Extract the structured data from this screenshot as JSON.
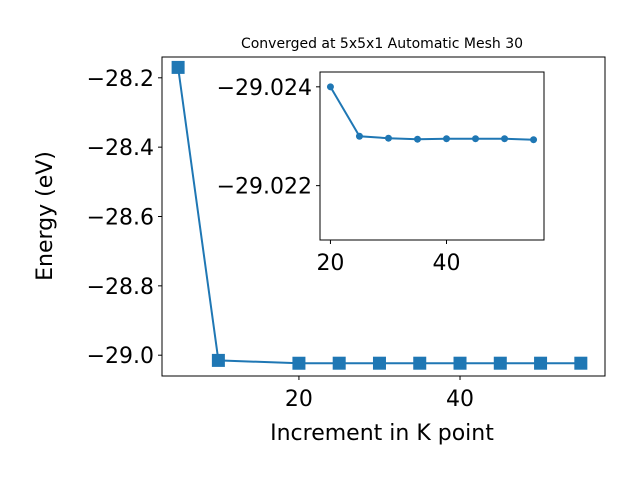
{
  "chart_data": [
    {
      "type": "line",
      "title": "Converged at 5x5x1 Automatic Mesh 30",
      "xlabel": "Increment in K point",
      "ylabel": "Energy (eV)",
      "xlim": [
        3,
        58
      ],
      "ylim": [
        -29.06,
        -28.14
      ],
      "xticks": [
        20,
        40
      ],
      "xtick_labels": [
        "20",
        "40"
      ],
      "yticks": [
        -28.2,
        -28.4,
        -28.6,
        -28.8,
        -29.0
      ],
      "ytick_labels": [
        "−28.2",
        "−28.4",
        "−28.6",
        "−28.8",
        "−29.0"
      ],
      "grid": false,
      "legend": false,
      "color": "#1f77b4",
      "marker": "square",
      "series": [
        {
          "x": [
            5,
            10,
            20,
            25,
            30,
            35,
            40,
            45,
            50,
            55
          ],
          "y": [
            -28.17,
            -29.015,
            -29.0232,
            -29.0231,
            -29.0231,
            -29.0231,
            -29.0231,
            -29.0231,
            -29.0231,
            -29.0231
          ]
        }
      ]
    },
    {
      "type": "line",
      "title": "",
      "xlabel": "",
      "ylabel": "",
      "inset": true,
      "xlim": [
        18.2,
        56.8
      ],
      "ylim": [
        -29.0209,
        -29.0243
      ],
      "xticks": [
        20,
        40
      ],
      "xtick_labels": [
        "20",
        "40"
      ],
      "yticks": [
        -29.024,
        -29.022
      ],
      "ytick_labels": [
        "−29.024",
        "−29.022"
      ],
      "grid": false,
      "legend": false,
      "color": "#1f77b4",
      "marker": "circle",
      "series": [
        {
          "x": [
            20,
            25,
            30,
            35,
            40,
            45,
            50,
            55
          ],
          "y": [
            -29.024,
            -29.023,
            -29.02296,
            -29.02294,
            -29.02295,
            -29.02295,
            -29.02295,
            -29.02293
          ]
        }
      ]
    }
  ]
}
